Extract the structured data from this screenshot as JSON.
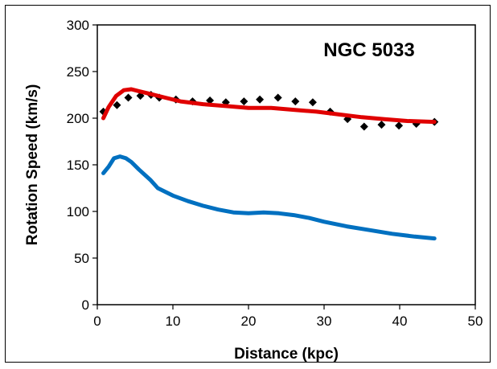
{
  "chart_data": {
    "type": "line",
    "title": "NGC 5033",
    "xlabel": "Distance  (kpc)",
    "ylabel": "Rotation Speed  (km/s)",
    "xlim": [
      0,
      50
    ],
    "ylim": [
      0,
      300
    ],
    "xticks": [
      "0",
      "10",
      "20",
      "30",
      "40",
      "50"
    ],
    "yticks": [
      "0",
      "50",
      "100",
      "150",
      "200",
      "250",
      "300"
    ],
    "grid": false,
    "legend": "none",
    "series": [
      {
        "kind": "scatter",
        "marker": "diamond",
        "color": "#000000",
        "x": [
          0.8,
          2.6,
          4.1,
          5.7,
          7.1,
          8.2,
          10.4,
          12.6,
          14.9,
          17.0,
          19.4,
          21.5,
          23.9,
          26.2,
          28.5,
          30.8,
          33.1,
          35.3,
          37.6,
          39.9,
          42.2,
          44.6
        ],
        "y": [
          207,
          214,
          222,
          224,
          225,
          222,
          220,
          218,
          219,
          217,
          218,
          220,
          222,
          218,
          217,
          207,
          199,
          191,
          193,
          192,
          194,
          196
        ]
      },
      {
        "kind": "line",
        "color": "#e00000",
        "x": [
          0.8,
          1.5,
          2.5,
          3.5,
          4.5,
          5.5,
          7.0,
          9.0,
          11.0,
          14.0,
          17.0,
          20.0,
          23.0,
          26.0,
          29.0,
          32.0,
          35.0,
          38.0,
          41.0,
          44.6
        ],
        "y": [
          200,
          212,
          224,
          230,
          231,
          229,
          226,
          222,
          218,
          215,
          213,
          211,
          211,
          209,
          207,
          204,
          201,
          199,
          197,
          196
        ]
      },
      {
        "kind": "line",
        "color": "#0070c0",
        "x": [
          0.8,
          1.5,
          2.2,
          3.0,
          3.8,
          4.5,
          5.5,
          7.0,
          8.0,
          10.0,
          12.0,
          14.0,
          16.0,
          18.0,
          20.0,
          22.0,
          24.0,
          26.0,
          28.0,
          30.0,
          33.0,
          36.0,
          39.0,
          42.0,
          44.6
        ],
        "y": [
          141,
          148,
          157,
          159,
          157,
          153,
          145,
          134,
          125,
          117,
          111,
          106,
          102,
          99,
          98,
          99,
          98,
          96,
          93,
          89,
          84,
          80,
          76,
          73,
          71
        ]
      }
    ]
  }
}
